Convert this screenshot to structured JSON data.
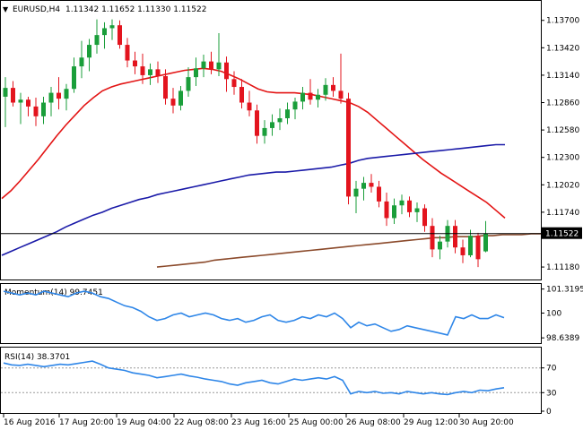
{
  "header": {
    "symbol_label": "EURUSD,H4",
    "ohlc_label": "1.11342 1.11652 1.11330 1.11522",
    "arrow": "▼"
  },
  "momentum": {
    "label": "Momentum(14) 99.7451",
    "ticks": [
      "101.3195",
      "100",
      "98.6389"
    ]
  },
  "rsi": {
    "label": "RSI(14) 38.3701",
    "ticks": [
      "70",
      "30",
      "0"
    ]
  },
  "colors": {
    "bull": "#1a9e3a",
    "bear": "#e3141e",
    "sma_fast": "#e31414",
    "sma_mid": "#1a1aa8",
    "sma_slow": "#8b4a2b",
    "indicator": "#2e86e8"
  },
  "chart_data": {
    "type": "candlestick",
    "symbol": "EURUSD",
    "timeframe": "H4",
    "price_ticks": [
      "1.13700",
      "1.13420",
      "1.13140",
      "1.12860",
      "1.12580",
      "1.12300",
      "1.12020",
      "1.11740",
      "1.11180"
    ],
    "current_price_label": "1.11522",
    "x_tick_labels": [
      "16 Aug 2016",
      "17 Aug 20:00",
      "19 Aug 04:00",
      "22 Aug 08:00",
      "23 Aug 16:00",
      "25 Aug 00:00",
      "26 Aug 08:00",
      "29 Aug 12:00",
      "30 Aug 20:00"
    ],
    "price_range": [
      1.1108,
      1.1378
    ],
    "candles": [
      [
        1.1292,
        1.1312,
        1.1261,
        1.1301
      ],
      [
        1.1301,
        1.1308,
        1.1282,
        1.1286
      ],
      [
        1.1286,
        1.1296,
        1.1264,
        1.1289
      ],
      [
        1.1289,
        1.1292,
        1.1272,
        1.1282
      ],
      [
        1.1282,
        1.1291,
        1.1262,
        1.1272
      ],
      [
        1.1272,
        1.1292,
        1.1264,
        1.1286
      ],
      [
        1.1286,
        1.1302,
        1.1272,
        1.1296
      ],
      [
        1.1296,
        1.1312,
        1.1279,
        1.129
      ],
      [
        1.129,
        1.1305,
        1.1278,
        1.13
      ],
      [
        1.13,
        1.1332,
        1.1296,
        1.1323
      ],
      [
        1.1323,
        1.1349,
        1.1311,
        1.1332
      ],
      [
        1.1332,
        1.1351,
        1.1318,
        1.1345
      ],
      [
        1.1345,
        1.1371,
        1.1336,
        1.1355
      ],
      [
        1.1355,
        1.1368,
        1.1341,
        1.1362
      ],
      [
        1.1362,
        1.1371,
        1.135,
        1.1365
      ],
      [
        1.1365,
        1.137,
        1.1341,
        1.1345
      ],
      [
        1.1345,
        1.1352,
        1.1322,
        1.1329
      ],
      [
        1.1329,
        1.1338,
        1.1315,
        1.1323
      ],
      [
        1.1323,
        1.1336,
        1.1305,
        1.1314
      ],
      [
        1.1314,
        1.1326,
        1.1304,
        1.132
      ],
      [
        1.132,
        1.1328,
        1.1306,
        1.1313
      ],
      [
        1.1313,
        1.132,
        1.1284,
        1.129
      ],
      [
        1.129,
        1.1301,
        1.1275,
        1.1283
      ],
      [
        1.1283,
        1.1303,
        1.1278,
        1.1298
      ],
      [
        1.1298,
        1.1322,
        1.1292,
        1.1312
      ],
      [
        1.1312,
        1.1332,
        1.1303,
        1.1321
      ],
      [
        1.1321,
        1.1335,
        1.1312,
        1.1328
      ],
      [
        1.1328,
        1.1338,
        1.1315,
        1.132
      ],
      [
        1.132,
        1.1357,
        1.1313,
        1.1327
      ],
      [
        1.1327,
        1.1333,
        1.1297,
        1.131
      ],
      [
        1.131,
        1.1318,
        1.1294,
        1.1302
      ],
      [
        1.1302,
        1.131,
        1.128,
        1.1286
      ],
      [
        1.1286,
        1.1298,
        1.1272,
        1.1278
      ],
      [
        1.1278,
        1.1284,
        1.1244,
        1.1252
      ],
      [
        1.1252,
        1.1268,
        1.1244,
        1.126
      ],
      [
        1.126,
        1.1274,
        1.1252,
        1.1266
      ],
      [
        1.1266,
        1.128,
        1.1258,
        1.127
      ],
      [
        1.127,
        1.1286,
        1.1264,
        1.1279
      ],
      [
        1.1279,
        1.1291,
        1.1269,
        1.1287
      ],
      [
        1.1287,
        1.1302,
        1.1279,
        1.1296
      ],
      [
        1.1296,
        1.131,
        1.1284,
        1.1289
      ],
      [
        1.1289,
        1.13,
        1.1281,
        1.1294
      ],
      [
        1.1294,
        1.1311,
        1.1288,
        1.1304
      ],
      [
        1.1304,
        1.1312,
        1.1292,
        1.1298
      ],
      [
        1.1298,
        1.1336,
        1.1285,
        1.129
      ],
      [
        1.129,
        1.1296,
        1.1182,
        1.119
      ],
      [
        1.119,
        1.1206,
        1.1173,
        1.1198
      ],
      [
        1.1198,
        1.121,
        1.1186,
        1.1204
      ],
      [
        1.1204,
        1.1213,
        1.1194,
        1.12
      ],
      [
        1.12,
        1.1206,
        1.1179,
        1.1185
      ],
      [
        1.1185,
        1.1194,
        1.116,
        1.1168
      ],
      [
        1.1168,
        1.1188,
        1.1162,
        1.1181
      ],
      [
        1.1181,
        1.1192,
        1.1172,
        1.1186
      ],
      [
        1.1186,
        1.119,
        1.1169,
        1.1174
      ],
      [
        1.1174,
        1.1184,
        1.1164,
        1.1178
      ],
      [
        1.1178,
        1.1182,
        1.1154,
        1.116
      ],
      [
        1.116,
        1.1168,
        1.1128,
        1.1136
      ],
      [
        1.1136,
        1.115,
        1.1126,
        1.1144
      ],
      [
        1.1144,
        1.1166,
        1.1138,
        1.116
      ],
      [
        1.116,
        1.1166,
        1.1132,
        1.1138
      ],
      [
        1.1138,
        1.1146,
        1.1122,
        1.113
      ],
      [
        1.113,
        1.1156,
        1.1128,
        1.115
      ],
      [
        1.115,
        1.1153,
        1.1118,
        1.1126
      ],
      [
        1.1134,
        1.1165,
        1.1133,
        1.1152
      ]
    ],
    "sma_fast": [
      1.1188,
      1.1196,
      1.1206,
      1.1217,
      1.1228,
      1.124,
      1.1252,
      1.1263,
      1.1273,
      1.1283,
      1.1291,
      1.1298,
      1.1302,
      1.1305,
      1.1307,
      1.1309,
      1.1311,
      1.1313,
      1.1315,
      1.1317,
      1.1319,
      1.132,
      1.1321,
      1.132,
      1.1318,
      1.1314,
      1.131,
      1.1305,
      1.13,
      1.1297,
      1.1296,
      1.1296,
      1.1296,
      1.1295,
      1.1294,
      1.1292,
      1.129,
      1.1288,
      1.1286,
      1.1282,
      1.1276,
      1.1268,
      1.126,
      1.1252,
      1.1244,
      1.1236,
      1.1228,
      1.1221,
      1.1214,
      1.1208,
      1.1202,
      1.1196,
      1.119,
      1.1184,
      1.1176,
      1.1168
    ],
    "sma_mid": [
      1.113,
      1.1134,
      1.1138,
      1.1142,
      1.1146,
      1.115,
      1.1154,
      1.1159,
      1.1163,
      1.1167,
      1.1171,
      1.1174,
      1.1178,
      1.1181,
      1.1184,
      1.1187,
      1.1189,
      1.1192,
      1.1194,
      1.1196,
      1.1198,
      1.12,
      1.1202,
      1.1204,
      1.1206,
      1.1208,
      1.121,
      1.1212,
      1.1213,
      1.1214,
      1.1215,
      1.1215,
      1.1216,
      1.1217,
      1.1218,
      1.1219,
      1.122,
      1.1222,
      1.1224,
      1.1227,
      1.1229,
      1.123,
      1.1231,
      1.1232,
      1.1233,
      1.1234,
      1.1235,
      1.1236,
      1.1237,
      1.1238,
      1.1239,
      1.124,
      1.1241,
      1.1242,
      1.1243,
      1.1243
    ],
    "sma_slow": [
      1.1118,
      1.1119,
      1.112,
      1.1121,
      1.1122,
      1.1123,
      1.1125,
      1.1126,
      1.1127,
      1.1128,
      1.1129,
      1.113,
      1.1131,
      1.1132,
      1.1133,
      1.1134,
      1.1135,
      1.1136,
      1.1137,
      1.1138,
      1.1139,
      1.114,
      1.1141,
      1.1142,
      1.1143,
      1.1144,
      1.1145,
      1.1146,
      1.1147,
      1.1148,
      1.1148,
      1.1149,
      1.1149,
      1.1149,
      1.115,
      1.115,
      1.1151,
      1.1151,
      1.1151,
      1.1152,
      1.1152
    ],
    "momentum_values": [
      101.2,
      101.1,
      101.0,
      101.1,
      101.0,
      101.2,
      101.1,
      101.0,
      100.9,
      101.1,
      101.2,
      101.1,
      100.9,
      100.8,
      100.6,
      100.4,
      100.3,
      100.1,
      99.8,
      99.6,
      99.7,
      99.9,
      100.0,
      99.8,
      99.9,
      100.0,
      99.9,
      99.7,
      99.6,
      99.7,
      99.5,
      99.6,
      99.8,
      99.9,
      99.6,
      99.5,
      99.6,
      99.8,
      99.7,
      99.9,
      99.8,
      100.0,
      99.7,
      99.2,
      99.5,
      99.3,
      99.4,
      99.2,
      99.0,
      99.1,
      99.3,
      99.2,
      99.1,
      99.0,
      98.9,
      98.8,
      99.8,
      99.7,
      99.9,
      99.7,
      99.7,
      99.9,
      99.75
    ],
    "rsi_values": [
      78,
      75,
      74,
      76,
      74,
      72,
      74,
      76,
      75,
      77,
      79,
      81,
      76,
      70,
      68,
      66,
      62,
      60,
      58,
      54,
      56,
      58,
      60,
      57,
      55,
      52,
      50,
      48,
      44,
      42,
      46,
      48,
      50,
      46,
      44,
      48,
      52,
      50,
      52,
      54,
      52,
      56,
      50,
      28,
      32,
      30,
      32,
      29,
      30,
      28,
      32,
      30,
      28,
      30,
      28,
      27,
      30,
      32,
      30,
      34,
      33,
      36,
      38
    ]
  }
}
